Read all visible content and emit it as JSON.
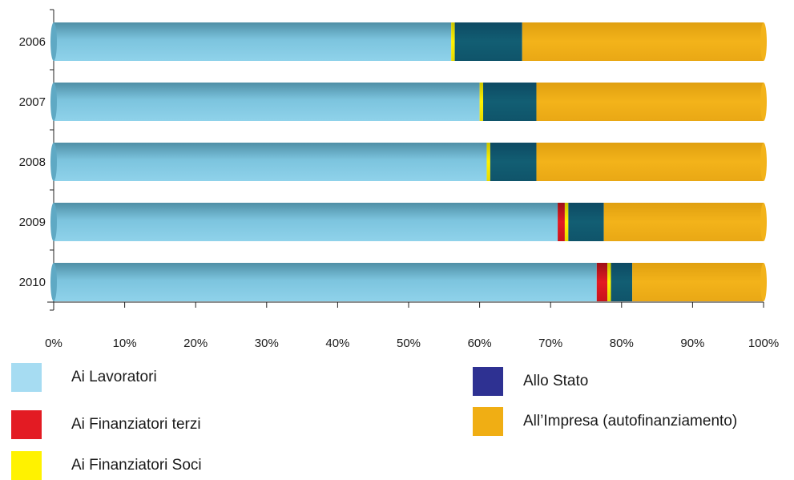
{
  "chart_data": {
    "type": "bar",
    "orientation": "horizontal",
    "stacked": true,
    "percent": true,
    "categories": [
      "2006",
      "2007",
      "2008",
      "2009",
      "2010"
    ],
    "series": [
      {
        "name": "Ai Lavoratori",
        "color": "#7ec8e3",
        "values": [
          56,
          60,
          61,
          71,
          76.5
        ]
      },
      {
        "name": "Ai Finanziatori terzi",
        "color": "#e31b23",
        "values": [
          0,
          0,
          0,
          1,
          1.5
        ]
      },
      {
        "name": "Ai Finanziatori Soci",
        "color": "#fff200",
        "values": [
          0.5,
          0.5,
          0.5,
          0.5,
          0.5
        ]
      },
      {
        "name": "Allo Stato",
        "color": "#2e3192",
        "values": [
          9.5,
          7.5,
          6.5,
          5,
          3
        ]
      },
      {
        "name": "All'Impresa (autofinanziamento)",
        "color": "#f0ae14",
        "values": [
          34,
          32,
          32,
          22.5,
          18.5
        ]
      }
    ],
    "x_ticks": [
      "0%",
      "10%",
      "20%",
      "30%",
      "40%",
      "50%",
      "60%",
      "70%",
      "80%",
      "90%",
      "100%"
    ],
    "xlim": [
      0,
      100
    ],
    "grid": false,
    "legend_position": "bottom"
  },
  "legend": {
    "items": [
      {
        "label": "Ai Lavoratori",
        "color": "#a6dcf2"
      },
      {
        "label": "Ai Finanziatori terzi",
        "color": "#e31b23"
      },
      {
        "label": "Ai Finanziatori Soci",
        "color": "#fff200"
      },
      {
        "label": "Allo Stato",
        "color": "#2e3192"
      },
      {
        "label": "All’Impresa (autofinanziamento)",
        "color": "#f0ae14"
      }
    ]
  }
}
